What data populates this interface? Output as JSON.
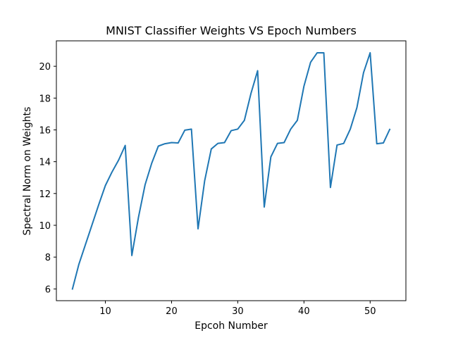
{
  "chart_data": {
    "type": "line",
    "title": "MNIST Classifier Weights VS Epoch Numbers",
    "xlabel": "Epcoh Number",
    "ylabel": "Spectral Norm on Weights",
    "xlim": [
      2.6,
      55.4
    ],
    "ylim": [
      5.26,
      21.6
    ],
    "xticks": [
      10,
      20,
      30,
      40,
      50
    ],
    "yticks": [
      6,
      8,
      10,
      12,
      14,
      16,
      18,
      20
    ],
    "grid": false,
    "line_color": "#1f77b4",
    "series": [
      {
        "x": [
          5,
          6,
          7,
          8,
          9,
          10,
          11,
          12,
          13,
          14,
          15,
          16,
          17,
          18,
          19,
          20,
          21,
          22,
          23,
          24,
          25,
          26,
          27,
          28,
          29,
          30,
          31,
          32,
          33,
          34,
          35,
          36,
          37,
          38,
          39,
          40,
          41,
          42,
          43,
          44,
          45,
          46,
          47,
          48,
          49,
          50,
          51,
          52,
          53
        ],
        "values": [
          5.95,
          7.55,
          8.8,
          10.05,
          11.3,
          12.5,
          13.35,
          14.1,
          15.02,
          8.1,
          10.5,
          12.55,
          13.9,
          14.98,
          15.13,
          15.2,
          15.18,
          15.98,
          16.05,
          9.78,
          12.8,
          14.8,
          15.15,
          15.2,
          15.95,
          16.05,
          16.6,
          18.3,
          19.72,
          11.15,
          14.3,
          15.15,
          15.2,
          16.05,
          16.6,
          18.75,
          20.25,
          20.85,
          20.85,
          12.38,
          15.05,
          15.15,
          16.05,
          17.4,
          19.6,
          20.85,
          15.13,
          15.18,
          16.07
        ]
      }
    ]
  }
}
